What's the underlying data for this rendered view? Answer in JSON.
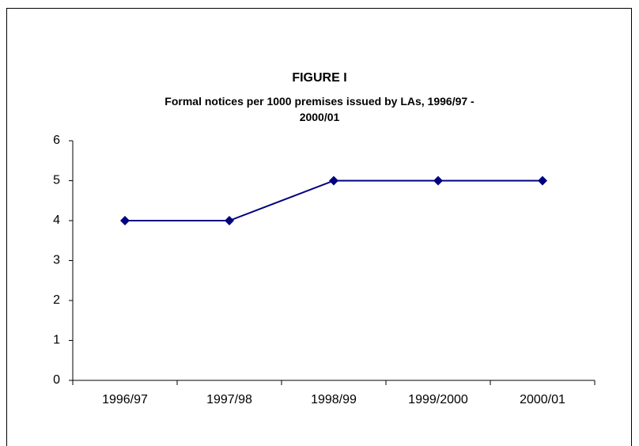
{
  "chart_data": {
    "type": "line",
    "title": "FIGURE I",
    "subtitle": "Formal notices per 1000 premises issued by LAs, 1996/97 - 2000/01",
    "categories": [
      "1996/97",
      "1997/98",
      "1998/99",
      "1999/2000",
      "2000/01"
    ],
    "values": [
      4,
      4,
      5,
      5,
      5
    ],
    "color": "#000080",
    "ylim": [
      0,
      6
    ],
    "yticks": [
      0,
      1,
      2,
      3,
      4,
      5,
      6
    ],
    "grid": false
  }
}
